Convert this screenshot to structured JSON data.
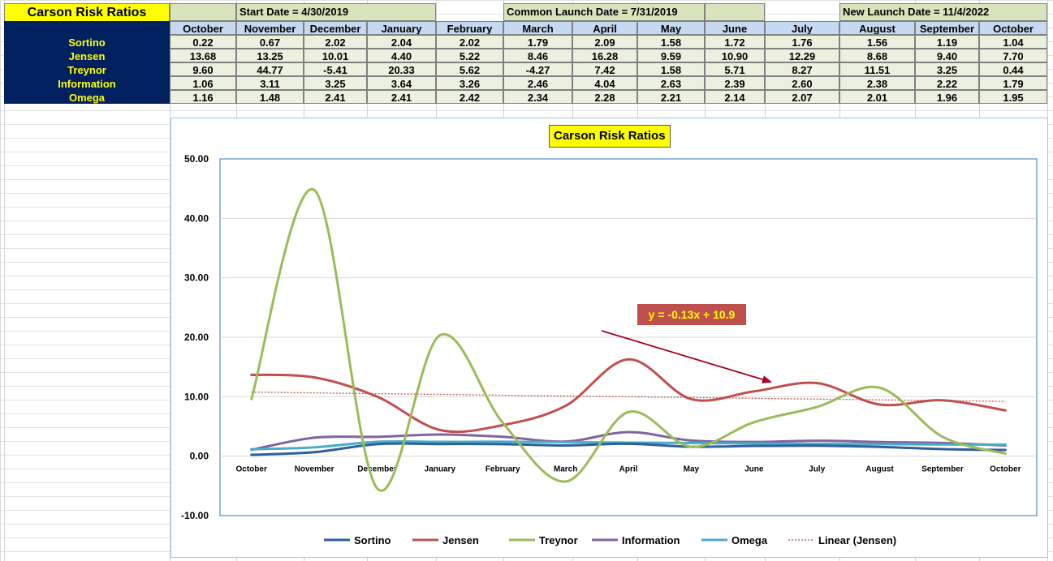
{
  "sheet": {
    "title": "Carson Risk Ratios",
    "start_date": "Start Date = 4/30/2019",
    "common_launch": "Common Launch Date = 7/31/2019",
    "new_launch": "New Launch Date = 11/4/2022",
    "months": [
      "October",
      "November",
      "December",
      "January",
      "February",
      "March",
      "April",
      "May",
      "June",
      "July",
      "August",
      "September",
      "October"
    ],
    "rows": [
      {
        "label": "Sortino",
        "values": [
          "0.22",
          "0.67",
          "2.02",
          "2.04",
          "2.02",
          "1.79",
          "2.09",
          "1.58",
          "1.72",
          "1.76",
          "1.56",
          "1.19",
          "1.04"
        ]
      },
      {
        "label": "Jensen",
        "values": [
          "13.68",
          "13.25",
          "10.01",
          "4.40",
          "5.22",
          "8.46",
          "16.28",
          "9.59",
          "10.90",
          "12.29",
          "8.68",
          "9.40",
          "7.70"
        ]
      },
      {
        "label": "Treynor",
        "values": [
          "9.60",
          "44.77",
          "-5.41",
          "20.33",
          "5.62",
          "-4.27",
          "7.42",
          "1.58",
          "5.71",
          "8.27",
          "11.51",
          "3.25",
          "0.44"
        ]
      },
      {
        "label": "Information",
        "values": [
          "1.06",
          "3.11",
          "3.25",
          "3.64",
          "3.26",
          "2.46",
          "4.04",
          "2.63",
          "2.39",
          "2.60",
          "2.38",
          "2.22",
          "1.79"
        ]
      },
      {
        "label": "Omega",
        "values": [
          "1.16",
          "1.48",
          "2.41",
          "2.41",
          "2.42",
          "2.34",
          "2.28",
          "2.21",
          "2.14",
          "2.07",
          "2.01",
          "1.96",
          "1.95"
        ]
      }
    ]
  },
  "chart_data": {
    "type": "line",
    "title": "Carson Risk Ratios",
    "categories": [
      "October",
      "November",
      "December",
      "January",
      "February",
      "March",
      "April",
      "May",
      "June",
      "July",
      "August",
      "September",
      "October"
    ],
    "ylim": [
      -10,
      50
    ],
    "yticks": [
      "50.00",
      "40.00",
      "30.00",
      "20.00",
      "10.00",
      "0.00",
      "-10.00"
    ],
    "ytick_values": [
      50,
      40,
      30,
      20,
      10,
      0,
      -10
    ],
    "grid": true,
    "smooth": true,
    "legend_position": "bottom",
    "series": [
      {
        "name": "Sortino",
        "color": "#2e5f9e",
        "values": [
          0.22,
          0.67,
          2.02,
          2.04,
          2.02,
          1.79,
          2.09,
          1.58,
          1.72,
          1.76,
          1.56,
          1.19,
          1.04
        ]
      },
      {
        "name": "Jensen",
        "color": "#c0504d",
        "values": [
          13.68,
          13.25,
          10.01,
          4.4,
          5.22,
          8.46,
          16.28,
          9.59,
          10.9,
          12.29,
          8.68,
          9.4,
          7.7
        ]
      },
      {
        "name": "Treynor",
        "color": "#9bbb59",
        "values": [
          9.6,
          44.77,
          -5.41,
          20.33,
          5.62,
          -4.27,
          7.42,
          1.58,
          5.71,
          8.27,
          11.51,
          3.25,
          0.44
        ]
      },
      {
        "name": "Information",
        "color": "#8064a2",
        "values": [
          1.06,
          3.11,
          3.25,
          3.64,
          3.26,
          2.46,
          4.04,
          2.63,
          2.39,
          2.6,
          2.38,
          2.22,
          1.79
        ]
      },
      {
        "name": "Omega",
        "color": "#4bacc6",
        "values": [
          1.16,
          1.48,
          2.41,
          2.41,
          2.42,
          2.34,
          2.28,
          2.21,
          2.14,
          2.07,
          2.01,
          1.96,
          1.95
        ]
      }
    ],
    "trendline": {
      "name": "Linear (Jensen)",
      "color": "#c0504d",
      "slope": -0.13,
      "intercept": 10.9
    },
    "annotation": {
      "text": "y = -0.13x + 10.9",
      "bg_color": "#c0504d",
      "text_color": "#ffff00",
      "arrow_color": "#a50021"
    }
  }
}
